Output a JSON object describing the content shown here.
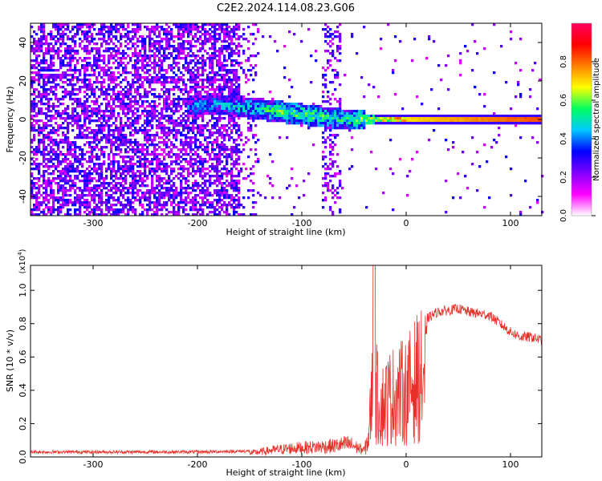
{
  "title": "C2E2.2024.114.08.23.G06",
  "chart_data": [
    {
      "type": "heatmap",
      "xlabel": "Height of straight line (km)",
      "ylabel": "Frequency (Hz)",
      "xlim": [
        -360,
        130
      ],
      "ylim": [
        -50,
        50
      ],
      "x_ticks": [
        -300,
        -200,
        -100,
        0,
        100
      ],
      "y_ticks": [
        -40,
        -20,
        0,
        20,
        40
      ],
      "colorbar": {
        "label": "Normalized spectral amplitude",
        "range": [
          0.0,
          1.0
        ],
        "ticks": [
          0.0,
          0.2,
          0.4,
          0.6,
          0.8
        ],
        "colors": [
          "#ffffff",
          "#ff00ff",
          "#8000ff",
          "#0000ff",
          "#00c8ff",
          "#00ff60",
          "#ffff00",
          "#ff8000",
          "#ff0000",
          "#ff0060"
        ]
      },
      "features": {
        "noise_region_x": [
          -360,
          -160
        ],
        "signal_band": [
          {
            "x": -210,
            "y": 7,
            "amp": 0.35
          },
          {
            "x": -180,
            "y": 8,
            "amp": 0.4
          },
          {
            "x": -150,
            "y": 6,
            "amp": 0.45
          },
          {
            "x": -120,
            "y": 4,
            "amp": 0.55
          },
          {
            "x": -90,
            "y": 2,
            "amp": 0.55
          },
          {
            "x": -60,
            "y": 0,
            "amp": 0.5
          },
          {
            "x": -30,
            "y": 0,
            "amp": 0.65
          },
          {
            "x": 0,
            "y": 0,
            "amp": 0.8
          },
          {
            "x": 130,
            "y": 0,
            "amp": 0.95
          }
        ]
      }
    },
    {
      "type": "line",
      "xlabel": "Height of straight line (km)",
      "ylabel": "SNR (10 * v/v)",
      "y_multiplier": "(x10",
      "y_multiplier_exp": "4",
      "y_multiplier_close": ")",
      "xlim": [
        -360,
        130
      ],
      "ylim": [
        0.0,
        1.15
      ],
      "x_ticks": [
        -300,
        -200,
        -100,
        0,
        100
      ],
      "y_ticks": [
        0.0,
        0.2,
        0.4,
        0.6,
        0.8,
        1.0
      ],
      "series_color": "#e8302a",
      "envelope": {
        "x": [
          -360,
          -300,
          -200,
          -150,
          -130,
          -110,
          -90,
          -70,
          -55,
          -45,
          -40,
          -36,
          -33,
          -31,
          -28,
          -25,
          -20,
          -15,
          -10,
          -5,
          0,
          10,
          20,
          30,
          40,
          50,
          60,
          70,
          80,
          90,
          100,
          110,
          120,
          130
        ],
        "y": [
          0.03,
          0.03,
          0.03,
          0.035,
          0.06,
          0.08,
          0.09,
          0.1,
          0.12,
          0.08,
          0.06,
          0.2,
          0.6,
          0.9,
          0.6,
          0.5,
          0.55,
          0.6,
          0.62,
          0.64,
          0.65,
          0.78,
          0.83,
          0.87,
          0.88,
          0.89,
          0.87,
          0.86,
          0.85,
          0.8,
          0.75,
          0.72,
          0.72,
          0.7
        ]
      }
    }
  ]
}
